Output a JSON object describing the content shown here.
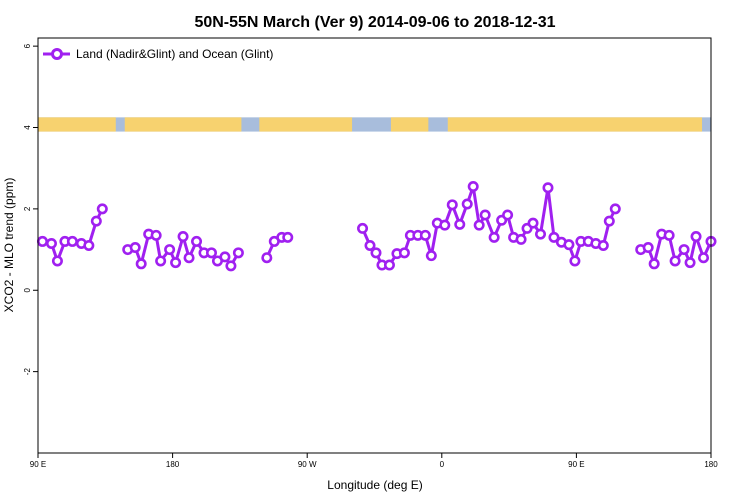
{
  "chart_data": {
    "type": "line",
    "title": "50N-55N March (Ver 9)   2014-09-06 to 2018-12-31",
    "xlabel": "Longitude (deg E)",
    "ylabel": "XCO2 - MLO trend (ppm)",
    "xlim": [
      90,
      540
    ],
    "ylim": [
      -4,
      6.2
    ],
    "grid": false,
    "legend_position": "top-left",
    "xticks": [
      {
        "value": 90,
        "label": "90 E"
      },
      {
        "value": 180,
        "label": "180"
      },
      {
        "value": 270,
        "label": "90 W"
      },
      {
        "value": 360,
        "label": "0"
      },
      {
        "value": 450,
        "label": "90 E"
      },
      {
        "value": 540,
        "label": "180"
      }
    ],
    "yticks": [
      {
        "value": -2,
        "label": "-2"
      },
      {
        "value": 0,
        "label": "0"
      },
      {
        "value": 2,
        "label": "2"
      },
      {
        "value": 4,
        "label": "4"
      },
      {
        "value": 6,
        "label": "6"
      }
    ],
    "colors": {
      "series": "#a020f0",
      "land": "#f7d26f",
      "ocean": "#a8bddc"
    },
    "land_ocean_band": {
      "y_range": [
        3.9,
        4.25
      ],
      "land_lon_ranges": [
        [
          90,
          142
        ],
        [
          148,
          226
        ],
        [
          238,
          300
        ],
        [
          326,
          351
        ],
        [
          364,
          534
        ]
      ]
    },
    "series": [
      {
        "name": "Land (Nadir&Glint) and Ocean (Glint)",
        "segments": [
          [
            [
              93,
              1.2
            ],
            [
              99,
              1.15
            ],
            [
              103,
              0.72
            ],
            [
              108,
              1.2
            ],
            [
              113,
              1.2
            ],
            [
              119,
              1.15
            ],
            [
              124,
              1.1
            ],
            [
              129,
              1.7
            ],
            [
              133,
              2.0
            ]
          ],
          [
            [
              150,
              1.0
            ],
            [
              155,
              1.05
            ],
            [
              159,
              0.65
            ],
            [
              164,
              1.38
            ],
            [
              169,
              1.35
            ],
            [
              172,
              0.72
            ],
            [
              178,
              1.0
            ],
            [
              182,
              0.68
            ],
            [
              187,
              1.32
            ],
            [
              191,
              0.8
            ],
            [
              196,
              1.2
            ],
            [
              201,
              0.92
            ],
            [
              206,
              0.92
            ],
            [
              210,
              0.72
            ],
            [
              215,
              0.82
            ],
            [
              219,
              0.6
            ],
            [
              224,
              0.92
            ]
          ],
          [
            [
              243,
              0.8
            ],
            [
              248,
              1.2
            ],
            [
              253,
              1.3
            ],
            [
              257,
              1.3
            ]
          ],
          [
            [
              307,
              1.52
            ],
            [
              312,
              1.1
            ],
            [
              316,
              0.92
            ],
            [
              320,
              0.62
            ],
            [
              325,
              0.62
            ],
            [
              330,
              0.9
            ],
            [
              335,
              0.92
            ],
            [
              339,
              1.35
            ],
            [
              344,
              1.35
            ],
            [
              349,
              1.35
            ],
            [
              353,
              0.85
            ],
            [
              357,
              1.65
            ],
            [
              362,
              1.6
            ],
            [
              367,
              2.1
            ],
            [
              372,
              1.62
            ],
            [
              377,
              2.12
            ],
            [
              381,
              2.55
            ],
            [
              385,
              1.6
            ],
            [
              389,
              1.85
            ],
            [
              395,
              1.3
            ],
            [
              400,
              1.72
            ],
            [
              404,
              1.85
            ],
            [
              408,
              1.3
            ],
            [
              413,
              1.25
            ],
            [
              417,
              1.52
            ],
            [
              421,
              1.65
            ],
            [
              426,
              1.38
            ],
            [
              431,
              2.52
            ],
            [
              435,
              1.3
            ],
            [
              440,
              1.18
            ],
            [
              445,
              1.12
            ],
            [
              449,
              0.72
            ],
            [
              453,
              1.2
            ],
            [
              458,
              1.2
            ],
            [
              463,
              1.15
            ],
            [
              468,
              1.1
            ],
            [
              472,
              1.7
            ],
            [
              476,
              2.0
            ]
          ]
        ]
      },
      {
        "name": "",
        "segments": [
          [
            [
              493,
              1.0
            ],
            [
              498,
              1.05
            ],
            [
              502,
              0.65
            ],
            [
              507,
              1.38
            ],
            [
              512,
              1.35
            ],
            [
              516,
              0.72
            ],
            [
              522,
              1.0
            ],
            [
              526,
              0.68
            ],
            [
              530,
              1.32
            ],
            [
              535,
              0.8
            ],
            [
              540,
              1.2
            ]
          ]
        ]
      }
    ]
  }
}
